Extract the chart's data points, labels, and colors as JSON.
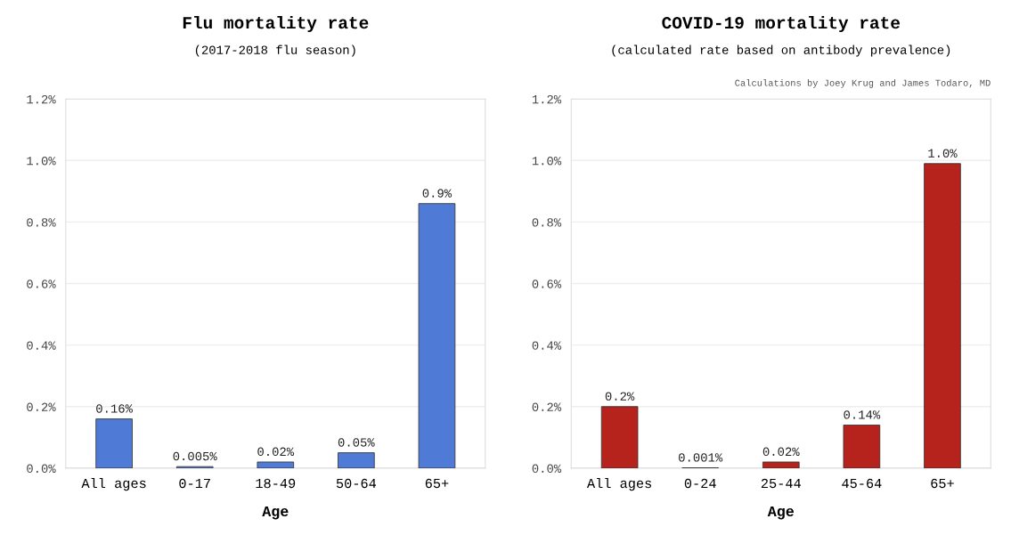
{
  "chart_data": [
    {
      "type": "bar",
      "title": "Flu mortality rate",
      "subtitle": "(2017-2018 flu season)",
      "xlabel": "Age",
      "categories": [
        "All ages",
        "0-17",
        "18-49",
        "50-64",
        "65+"
      ],
      "values": [
        0.16,
        0.005,
        0.02,
        0.05,
        0.86
      ],
      "value_labels": [
        "0.16%",
        "0.005%",
        "0.02%",
        "0.05%",
        "0.9%"
      ],
      "color": "#4f7bd6",
      "ylim": [
        0,
        1.2
      ],
      "yticks": [
        {
          "value": 0,
          "label": "0.0%"
        },
        {
          "value": 0.2,
          "label": "0.2%"
        },
        {
          "value": 0.4,
          "label": "0.4%"
        },
        {
          "value": 0.6,
          "label": "0.6%"
        },
        {
          "value": 0.8,
          "label": "0.8%"
        },
        {
          "value": 1.0,
          "label": "1.0%"
        },
        {
          "value": 1.2,
          "label": "1.2%"
        }
      ],
      "grid": "y",
      "legend": false
    },
    {
      "type": "bar",
      "title": "COVID-19 mortality rate",
      "subtitle": "(calculated rate based on antibody prevalence)",
      "xlabel": "Age",
      "annotations": [
        "Calculations by Joey Krug and James Todaro, MD"
      ],
      "categories": [
        "All ages",
        "0-24",
        "25-44",
        "45-64",
        "65+"
      ],
      "values": [
        0.2,
        0.001,
        0.02,
        0.14,
        0.99
      ],
      "value_labels": [
        "0.2%",
        "0.001%",
        "0.02%",
        "0.14%",
        "1.0%"
      ],
      "color": "#b5231c",
      "ylim": [
        0,
        1.2
      ],
      "yticks": [
        {
          "value": 0,
          "label": "0.0%"
        },
        {
          "value": 0.2,
          "label": "0.2%"
        },
        {
          "value": 0.4,
          "label": "0.4%"
        },
        {
          "value": 0.6,
          "label": "0.6%"
        },
        {
          "value": 0.8,
          "label": "0.8%"
        },
        {
          "value": 1.0,
          "label": "1.0%"
        },
        {
          "value": 1.2,
          "label": "1.2%"
        }
      ],
      "grid": "y",
      "legend": false
    }
  ]
}
